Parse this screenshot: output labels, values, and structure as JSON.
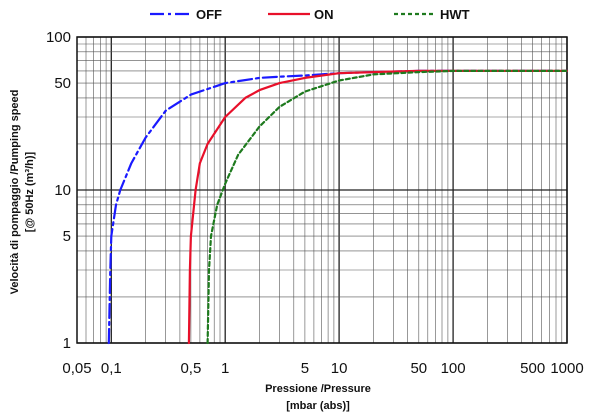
{
  "chart_data": {
    "type": "line",
    "x_scale": "log",
    "y_scale": "log",
    "xlim": [
      0.05,
      1000
    ],
    "ylim": [
      1,
      100
    ],
    "grid": true,
    "legend_position": "top",
    "x_ticks": [
      {
        "v": 0.05,
        "label": "0,05"
      },
      {
        "v": 0.1,
        "label": "0,1"
      },
      {
        "v": 0.5,
        "label": "0,5"
      },
      {
        "v": 1,
        "label": "1"
      },
      {
        "v": 5,
        "label": "5"
      },
      {
        "v": 10,
        "label": "10"
      },
      {
        "v": 50,
        "label": "50"
      },
      {
        "v": 100,
        "label": "100"
      },
      {
        "v": 500,
        "label": "500"
      },
      {
        "v": 1000,
        "label": "1000"
      }
    ],
    "y_ticks": [
      {
        "v": 1,
        "label": "1"
      },
      {
        "v": 5,
        "label": "5"
      },
      {
        "v": 10,
        "label": "10"
      },
      {
        "v": 50,
        "label": "50"
      },
      {
        "v": 100,
        "label": "100"
      }
    ],
    "xlabel": "Pressione /Pressure",
    "xlabel_unit": "[mbar (abs)]",
    "ylabel": "Velocità di pompaggio /Pumping speed",
    "ylabel_unit": "[@ 50Hz (m³/h)]",
    "series": [
      {
        "name": "OFF",
        "color": "#1a1aff",
        "dash": "14,4,3,4",
        "points": [
          [
            0.095,
            1
          ],
          [
            0.098,
            3
          ],
          [
            0.1,
            5
          ],
          [
            0.11,
            8
          ],
          [
            0.12,
            10
          ],
          [
            0.15,
            15
          ],
          [
            0.2,
            22
          ],
          [
            0.3,
            33
          ],
          [
            0.5,
            42
          ],
          [
            1,
            50
          ],
          [
            2,
            54
          ],
          [
            3,
            55
          ],
          [
            5,
            56
          ],
          [
            10,
            58
          ],
          [
            20,
            59
          ],
          [
            50,
            60
          ],
          [
            100,
            60
          ],
          [
            1000,
            60
          ]
        ]
      },
      {
        "name": "ON",
        "color": "#e8102a",
        "dash": "",
        "points": [
          [
            0.48,
            1
          ],
          [
            0.49,
            3
          ],
          [
            0.5,
            5
          ],
          [
            0.55,
            10
          ],
          [
            0.6,
            15
          ],
          [
            0.7,
            20
          ],
          [
            1,
            30
          ],
          [
            1.5,
            40
          ],
          [
            2,
            45
          ],
          [
            3,
            50
          ],
          [
            5,
            54
          ],
          [
            10,
            58
          ],
          [
            20,
            59
          ],
          [
            50,
            60
          ],
          [
            100,
            60
          ],
          [
            1000,
            60
          ]
        ]
      },
      {
        "name": "HWT",
        "color": "#1e7a1e",
        "dash": "4,3",
        "points": [
          [
            0.7,
            1
          ],
          [
            0.72,
            3
          ],
          [
            0.75,
            5
          ],
          [
            0.85,
            8
          ],
          [
            1,
            11
          ],
          [
            1.3,
            17
          ],
          [
            2,
            26
          ],
          [
            3,
            35
          ],
          [
            5,
            44
          ],
          [
            10,
            52
          ],
          [
            20,
            57
          ],
          [
            50,
            59
          ],
          [
            100,
            60
          ],
          [
            1000,
            60
          ]
        ]
      }
    ]
  }
}
